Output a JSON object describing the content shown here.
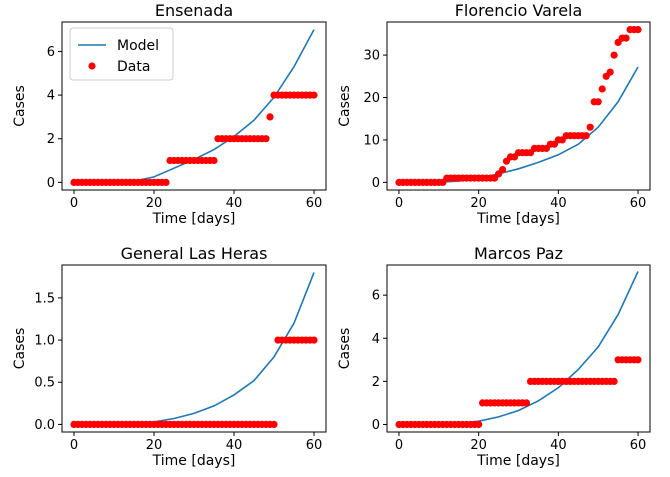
{
  "chart_data": [
    {
      "type": "line+scatter",
      "title": "Ensenada",
      "xlabel": "Time [days]",
      "ylabel": "Cases",
      "xlim": [
        -3,
        63
      ],
      "ylim": [
        -0.35,
        7.35
      ],
      "xticks": [
        0,
        20,
        40,
        60
      ],
      "yticks": [
        0,
        2,
        4,
        6
      ],
      "ytick_labels": [
        "0",
        "2",
        "4",
        "6"
      ],
      "grid": false,
      "legend": {
        "position": "upper-left",
        "entries": [
          "Model",
          "Data"
        ]
      },
      "series": [
        {
          "name": "Model",
          "kind": "line",
          "color": "#1f77b4",
          "x": [
            0,
            5,
            10,
            15,
            20,
            25,
            30,
            35,
            40,
            45,
            50,
            55,
            60
          ],
          "y": [
            0,
            0,
            0.01,
            0.05,
            0.25,
            0.65,
            1.05,
            1.5,
            2.1,
            2.85,
            3.9,
            5.3,
            7.0
          ]
        },
        {
          "name": "Data",
          "kind": "scatter",
          "color": "#ff0000",
          "x": [
            0,
            1,
            2,
            3,
            4,
            5,
            6,
            7,
            8,
            9,
            10,
            11,
            12,
            13,
            14,
            15,
            16,
            17,
            18,
            19,
            20,
            21,
            22,
            23,
            24,
            25,
            26,
            27,
            28,
            29,
            30,
            31,
            32,
            33,
            34,
            35,
            36,
            37,
            38,
            39,
            40,
            41,
            42,
            43,
            44,
            45,
            46,
            47,
            48,
            49,
            50,
            51,
            52,
            53,
            54,
            55,
            56,
            57,
            58,
            59,
            60
          ],
          "y": [
            0,
            0,
            0,
            0,
            0,
            0,
            0,
            0,
            0,
            0,
            0,
            0,
            0,
            0,
            0,
            0,
            0,
            0,
            0,
            0,
            0,
            0,
            0,
            0,
            1,
            1,
            1,
            1,
            1,
            1,
            1,
            1,
            1,
            1,
            1,
            1,
            2,
            2,
            2,
            2,
            2,
            2,
            2,
            2,
            2,
            2,
            2,
            2,
            2,
            3,
            4,
            4,
            4,
            4,
            4,
            4,
            4,
            4,
            4,
            4,
            4
          ]
        }
      ]
    },
    {
      "type": "line+scatter",
      "title": "Florencio Varela",
      "xlabel": "Time [days]",
      "ylabel": "Cases",
      "xlim": [
        -3,
        63
      ],
      "ylim": [
        -1.8,
        37.8
      ],
      "xticks": [
        0,
        20,
        40,
        60
      ],
      "yticks": [
        0,
        10,
        20,
        30
      ],
      "ytick_labels": [
        "0",
        "10",
        "20",
        "30"
      ],
      "grid": false,
      "series": [
        {
          "name": "Model",
          "kind": "line",
          "color": "#1f77b4",
          "x": [
            0,
            5,
            10,
            15,
            20,
            25,
            30,
            35,
            40,
            45,
            50,
            55,
            60
          ],
          "y": [
            0,
            0,
            0.05,
            0.3,
            1.0,
            2.0,
            3.2,
            4.7,
            6.5,
            9.0,
            13.0,
            19.0,
            27.2
          ]
        },
        {
          "name": "Data",
          "kind": "scatter",
          "color": "#ff0000",
          "x": [
            0,
            1,
            2,
            3,
            4,
            5,
            6,
            7,
            8,
            9,
            10,
            11,
            12,
            13,
            14,
            15,
            16,
            17,
            18,
            19,
            20,
            21,
            22,
            23,
            24,
            25,
            26,
            27,
            28,
            29,
            30,
            31,
            32,
            33,
            34,
            35,
            36,
            37,
            38,
            39,
            40,
            41,
            42,
            43,
            44,
            45,
            46,
            47,
            48,
            49,
            50,
            51,
            52,
            53,
            54,
            55,
            56,
            57,
            58,
            59,
            60
          ],
          "y": [
            0,
            0,
            0,
            0,
            0,
            0,
            0,
            0,
            0,
            0,
            0,
            0,
            1,
            1,
            1,
            1,
            1,
            1,
            1,
            1,
            1,
            1,
            1,
            1,
            1,
            2,
            3,
            5,
            6,
            6,
            7,
            7,
            7,
            7,
            8,
            8,
            8,
            8,
            9,
            9,
            10,
            10,
            11,
            11,
            11,
            11,
            11,
            11,
            13,
            19,
            19,
            22,
            25,
            26,
            30,
            33,
            34,
            34,
            36,
            36,
            36
          ]
        }
      ]
    },
    {
      "type": "line+scatter",
      "title": "General Las Heras",
      "xlabel": "Time [days]",
      "ylabel": "Cases",
      "xlim": [
        -3,
        63
      ],
      "ylim": [
        -0.09,
        1.89
      ],
      "xticks": [
        0,
        20,
        40,
        60
      ],
      "yticks": [
        0,
        0.5,
        1.0,
        1.5
      ],
      "ytick_labels": [
        "0.0",
        "0.5",
        "1.0",
        "1.5"
      ],
      "grid": false,
      "series": [
        {
          "name": "Model",
          "kind": "line",
          "color": "#1f77b4",
          "x": [
            0,
            5,
            10,
            15,
            20,
            25,
            30,
            35,
            40,
            45,
            50,
            55,
            60
          ],
          "y": [
            0,
            0,
            0.002,
            0.01,
            0.03,
            0.07,
            0.13,
            0.22,
            0.35,
            0.52,
            0.8,
            1.2,
            1.8
          ]
        },
        {
          "name": "Data",
          "kind": "scatter",
          "color": "#ff0000",
          "x": [
            0,
            1,
            2,
            3,
            4,
            5,
            6,
            7,
            8,
            9,
            10,
            11,
            12,
            13,
            14,
            15,
            16,
            17,
            18,
            19,
            20,
            21,
            22,
            23,
            24,
            25,
            26,
            27,
            28,
            29,
            30,
            31,
            32,
            33,
            34,
            35,
            36,
            37,
            38,
            39,
            40,
            41,
            42,
            43,
            44,
            45,
            46,
            47,
            48,
            49,
            50,
            51,
            52,
            53,
            54,
            55,
            56,
            57,
            58,
            59,
            60
          ],
          "y": [
            0,
            0,
            0,
            0,
            0,
            0,
            0,
            0,
            0,
            0,
            0,
            0,
            0,
            0,
            0,
            0,
            0,
            0,
            0,
            0,
            0,
            0,
            0,
            0,
            0,
            0,
            0,
            0,
            0,
            0,
            0,
            0,
            0,
            0,
            0,
            0,
            0,
            0,
            0,
            0,
            0,
            0,
            0,
            0,
            0,
            0,
            0,
            0,
            0,
            0,
            0,
            1,
            1,
            1,
            1,
            1,
            1,
            1,
            1,
            1,
            1
          ]
        }
      ]
    },
    {
      "type": "line+scatter",
      "title": "Marcos Paz",
      "xlabel": "Time [days]",
      "ylabel": "Cases",
      "xlim": [
        -3,
        63
      ],
      "ylim": [
        -0.35,
        7.4
      ],
      "xticks": [
        0,
        20,
        40,
        60
      ],
      "yticks": [
        0,
        2,
        4,
        6
      ],
      "ytick_labels": [
        "0",
        "2",
        "4",
        "6"
      ],
      "grid": false,
      "series": [
        {
          "name": "Model",
          "kind": "line",
          "color": "#1f77b4",
          "x": [
            0,
            5,
            10,
            15,
            20,
            25,
            30,
            35,
            40,
            45,
            50,
            55,
            60
          ],
          "y": [
            0,
            0,
            0.01,
            0.05,
            0.15,
            0.35,
            0.65,
            1.1,
            1.7,
            2.55,
            3.6,
            5.1,
            7.1
          ]
        },
        {
          "name": "Data",
          "kind": "scatter",
          "color": "#ff0000",
          "x": [
            0,
            1,
            2,
            3,
            4,
            5,
            6,
            7,
            8,
            9,
            10,
            11,
            12,
            13,
            14,
            15,
            16,
            17,
            18,
            19,
            20,
            21,
            22,
            23,
            24,
            25,
            26,
            27,
            28,
            29,
            30,
            31,
            32,
            33,
            34,
            35,
            36,
            37,
            38,
            39,
            40,
            41,
            42,
            43,
            44,
            45,
            46,
            47,
            48,
            49,
            50,
            51,
            52,
            53,
            54,
            55,
            56,
            57,
            58,
            59,
            60
          ],
          "y": [
            0,
            0,
            0,
            0,
            0,
            0,
            0,
            0,
            0,
            0,
            0,
            0,
            0,
            0,
            0,
            0,
            0,
            0,
            0,
            0,
            0,
            1,
            1,
            1,
            1,
            1,
            1,
            1,
            1,
            1,
            1,
            1,
            1,
            2,
            2,
            2,
            2,
            2,
            2,
            2,
            2,
            2,
            2,
            2,
            2,
            2,
            2,
            2,
            2,
            2,
            2,
            2,
            2,
            2,
            2,
            3,
            3,
            3,
            3,
            3,
            3
          ]
        }
      ]
    }
  ]
}
